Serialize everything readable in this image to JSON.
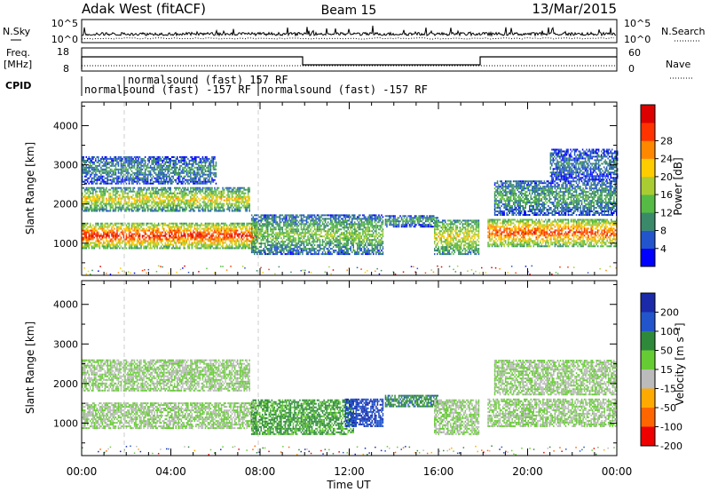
{
  "header": {
    "station": "Adak West (fitACF)",
    "beam": "Beam 15",
    "date": "13/Mar/2015"
  },
  "info_panel": {
    "nsky_label": "N.Sky",
    "nsky_ticks": [
      "10^5",
      "10^0"
    ],
    "nsearch_label": "N.Search",
    "freq_label": "Freq.",
    "freq_unit": "[MHz]",
    "freq_ticks": [
      "18",
      "8"
    ],
    "nave_label": "Nave",
    "nave_ticks": [
      "60",
      "0"
    ],
    "cpid_label": "CPID",
    "cpid_labels": [
      "normalsound (fast) -157 RF",
      "normalsound (fast) 157 RF",
      "normalsound (fast) -157 RF"
    ]
  },
  "chart_data": [
    {
      "type": "heatmap",
      "panel": "power",
      "ylabel": "Slant Range [km]",
      "ylim": [
        180,
        4600
      ],
      "yticks": [
        "1000",
        "2000",
        "3000",
        "4000"
      ],
      "xlim": [
        0,
        24
      ],
      "xticks": [
        "00:00",
        "04:00",
        "08:00",
        "12:00",
        "16:00",
        "20:00",
        "00:00"
      ],
      "colorbar": {
        "label": "Power [dB]",
        "ticks": [
          "4",
          "8",
          "12",
          "16",
          "20",
          "24",
          "28"
        ],
        "colors": [
          "#0000ff",
          "#2255cc",
          "#3a8a6a",
          "#55bb44",
          "#aacc33",
          "#ffcc00",
          "#ff8800",
          "#ff3300",
          "#dd0000"
        ]
      },
      "regions": [
        {
          "t0": 0.0,
          "t1": 7.8,
          "r0": 850,
          "r1": 1500,
          "level": 0.9
        },
        {
          "t0": 0.0,
          "t1": 7.5,
          "r0": 1800,
          "r1": 2400,
          "level": 0.6
        },
        {
          "t0": 0.0,
          "t1": 6.0,
          "r0": 2500,
          "r1": 3200,
          "level": 0.3
        },
        {
          "t0": 7.6,
          "t1": 13.5,
          "r0": 700,
          "r1": 1700,
          "level": 0.45
        },
        {
          "t0": 13.6,
          "t1": 16.0,
          "r0": 1400,
          "r1": 1700,
          "level": 0.35
        },
        {
          "t0": 15.8,
          "t1": 17.8,
          "r0": 700,
          "r1": 1600,
          "level": 0.6
        },
        {
          "t0": 18.2,
          "t1": 24.0,
          "r0": 900,
          "r1": 1600,
          "level": 0.85
        },
        {
          "t0": 18.5,
          "t1": 24.0,
          "r0": 1700,
          "r1": 2600,
          "level": 0.35
        },
        {
          "t0": 21.0,
          "t1": 24.0,
          "r0": 2600,
          "r1": 3400,
          "level": 0.25
        }
      ]
    },
    {
      "type": "heatmap",
      "panel": "velocity",
      "xlabel": "Time UT",
      "ylabel": "Slant Range [km]",
      "ylim": [
        180,
        4600
      ],
      "yticks": [
        "1000",
        "2000",
        "3000",
        "4000"
      ],
      "xlim": [
        0,
        24
      ],
      "xticks": [
        "00:00",
        "04:00",
        "08:00",
        "12:00",
        "16:00",
        "20:00",
        "00:00"
      ],
      "colorbar": {
        "label": "Velocity [m s⁻¹]",
        "ticks": [
          "200",
          "100",
          "50",
          "15",
          "-15",
          "-50",
          "-100",
          "-200"
        ],
        "colors": [
          "#1a2aa8",
          "#2255cc",
          "#2e8a3a",
          "#66cc33",
          "#bbbbbb",
          "#ffaa00",
          "#ff6600",
          "#ee0000"
        ]
      },
      "regions": [
        {
          "t0": 0.0,
          "t1": 7.8,
          "r0": 850,
          "r1": 1500,
          "level": 0.5
        },
        {
          "t0": 0.0,
          "t1": 7.5,
          "r0": 1800,
          "r1": 2600,
          "level": 0.5
        },
        {
          "t0": 7.6,
          "t1": 12.2,
          "r0": 700,
          "r1": 1600,
          "level": 0.35
        },
        {
          "t0": 11.8,
          "t1": 13.5,
          "r0": 900,
          "r1": 1600,
          "level": 0.15
        },
        {
          "t0": 13.6,
          "t1": 16.0,
          "r0": 1400,
          "r1": 1700,
          "level": 0.3
        },
        {
          "t0": 15.8,
          "t1": 17.8,
          "r0": 700,
          "r1": 1600,
          "level": 0.5
        },
        {
          "t0": 18.2,
          "t1": 24.0,
          "r0": 900,
          "r1": 1600,
          "level": 0.5
        },
        {
          "t0": 18.5,
          "t1": 24.0,
          "r0": 1700,
          "r1": 2600,
          "level": 0.5
        }
      ]
    }
  ]
}
